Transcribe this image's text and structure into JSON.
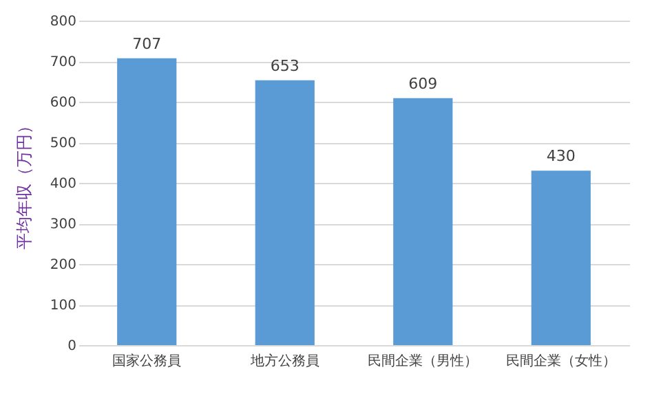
{
  "chart_data": {
    "type": "bar",
    "categories": [
      "国家公務員",
      "地方公務員",
      "民間企業（男性）",
      "民間企業（女性）"
    ],
    "values": [
      707,
      653,
      609,
      430
    ],
    "color": "#5b9bd5",
    "ylabel": "平均年収（万円）",
    "ylim": [
      0,
      800
    ],
    "yticks": [
      0,
      100,
      200,
      300,
      400,
      500,
      600,
      700,
      800
    ],
    "grid": "y",
    "data_labels": true
  }
}
